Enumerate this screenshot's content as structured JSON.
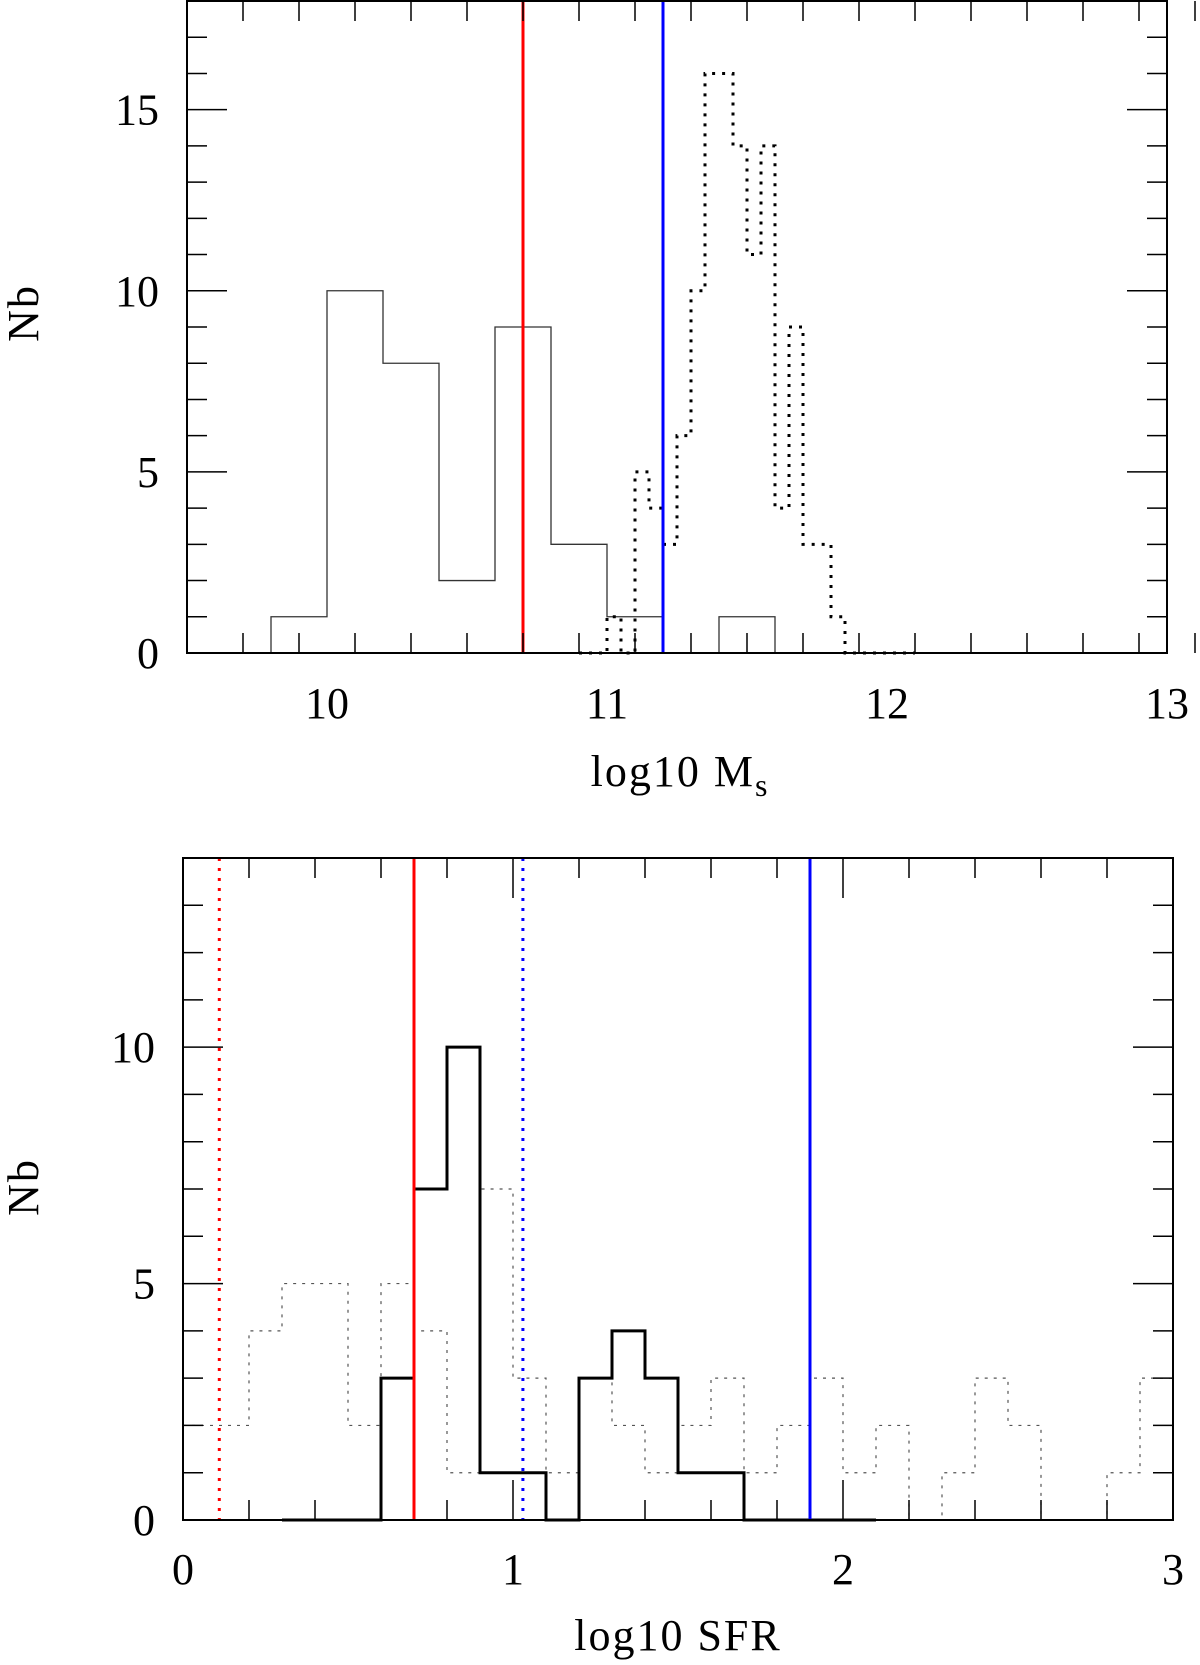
{
  "chart_data": [
    {
      "type": "histogram",
      "xlabel_main": "log10 M",
      "xlabel_subscript": "s",
      "ylabel": "Nb",
      "xlim": [
        9.5,
        13
      ],
      "ylim": [
        0,
        18
      ],
      "x_major_ticks": [
        10,
        11,
        12,
        13
      ],
      "x_tick_labels": [
        "10",
        "11",
        "12",
        "13"
      ],
      "x_minor_step": 0.2,
      "y_major_ticks": [
        0,
        5,
        10,
        15
      ],
      "y_tick_labels": [
        "0",
        "5",
        "10",
        "15"
      ],
      "y_minor_step": 1,
      "grid": false,
      "series": [
        {
          "style": "solid-thin",
          "color": "#000000",
          "bin_start": 9.6,
          "bin_width": 0.2,
          "counts": [
            0,
            1,
            10,
            8,
            2,
            9,
            3,
            1,
            0,
            1,
            0,
            0
          ]
        },
        {
          "style": "dotted-thick",
          "color": "#000000",
          "bin_start": 10.9,
          "bin_width": 0.05,
          "counts": [
            0,
            0,
            1,
            0,
            5,
            4,
            3,
            6,
            10,
            16,
            16,
            14,
            11,
            14,
            4,
            9,
            3,
            3,
            1,
            0,
            0,
            0,
            0,
            0
          ]
        }
      ],
      "vlines": [
        {
          "x": 10.7,
          "color": "#ff0000",
          "style": "solid"
        },
        {
          "x": 11.2,
          "color": "#0000ff",
          "style": "solid"
        }
      ]
    },
    {
      "type": "histogram",
      "xlabel_main": "log10 SFR",
      "ylabel": "Nb",
      "xlim": [
        0,
        3
      ],
      "ylim": [
        0,
        14
      ],
      "x_major_ticks": [
        0,
        1,
        2,
        3
      ],
      "x_tick_labels": [
        "0",
        "1",
        "2",
        "3"
      ],
      "x_minor_step": 0.2,
      "y_major_ticks": [
        0,
        5,
        10
      ],
      "y_tick_labels": [
        "0",
        "5",
        "10"
      ],
      "y_minor_step": 1,
      "grid": false,
      "series": [
        {
          "style": "dotted-thin",
          "color": "#555555",
          "bin_start": 0.0,
          "bin_width": 0.1,
          "counts": [
            2,
            2,
            4,
            5,
            5,
            2,
            5,
            4,
            1,
            7,
            3,
            1,
            3,
            2,
            1,
            2,
            3,
            1,
            2,
            3,
            1,
            2,
            0,
            1,
            3,
            2,
            0,
            0,
            1,
            3
          ]
        },
        {
          "style": "solid-thick",
          "color": "#000000",
          "bin_start": 0.3,
          "bin_width": 0.1,
          "counts": [
            0,
            0,
            0,
            3,
            7,
            10,
            1,
            1,
            0,
            3,
            4,
            3,
            1,
            1,
            0,
            0,
            0,
            0
          ]
        }
      ],
      "vlines": [
        {
          "x": 0.11,
          "color": "#ff0000",
          "style": "dotted"
        },
        {
          "x": 0.7,
          "color": "#ff0000",
          "style": "solid"
        },
        {
          "x": 1.03,
          "color": "#0000ff",
          "style": "dotted"
        },
        {
          "x": 1.9,
          "color": "#0000ff",
          "style": "solid"
        }
      ]
    }
  ]
}
